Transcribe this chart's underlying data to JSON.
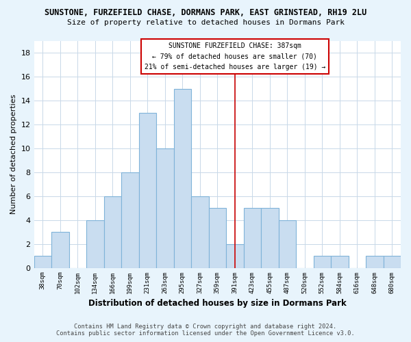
{
  "title": "SUNSTONE, FURZEFIELD CHASE, DORMANS PARK, EAST GRINSTEAD, RH19 2LU",
  "subtitle": "Size of property relative to detached houses in Dormans Park",
  "xlabel": "Distribution of detached houses by size in Dormans Park",
  "ylabel": "Number of detached properties",
  "bin_labels": [
    "38sqm",
    "70sqm",
    "102sqm",
    "134sqm",
    "166sqm",
    "199sqm",
    "231sqm",
    "263sqm",
    "295sqm",
    "327sqm",
    "359sqm",
    "391sqm",
    "423sqm",
    "455sqm",
    "487sqm",
    "520sqm",
    "552sqm",
    "584sqm",
    "616sqm",
    "648sqm",
    "680sqm"
  ],
  "bar_heights": [
    1,
    3,
    0,
    4,
    6,
    8,
    13,
    10,
    15,
    6,
    5,
    2,
    5,
    5,
    4,
    0,
    1,
    1,
    0,
    1,
    1
  ],
  "bar_color": "#c9ddf0",
  "bar_edge_color": "#7fb3d9",
  "marker_label": "SUNSTONE FURZEFIELD CHASE: 387sqm",
  "annotation_line1": "← 79% of detached houses are smaller (70)",
  "annotation_line2": "21% of semi-detached houses are larger (19) →",
  "marker_line_color": "#cc0000",
  "ylim": [
    0,
    19
  ],
  "yticks": [
    0,
    2,
    4,
    6,
    8,
    10,
    12,
    14,
    16,
    18
  ],
  "footer_line1": "Contains HM Land Registry data © Crown copyright and database right 2024.",
  "footer_line2": "Contains public sector information licensed under the Open Government Licence v3.0.",
  "bg_color": "#e8f4fc",
  "plot_bg_color": "#ffffff",
  "annotation_box_color": "#ffffff",
  "annotation_box_edge": "#cc0000",
  "grid_color": "#c8d8e8"
}
